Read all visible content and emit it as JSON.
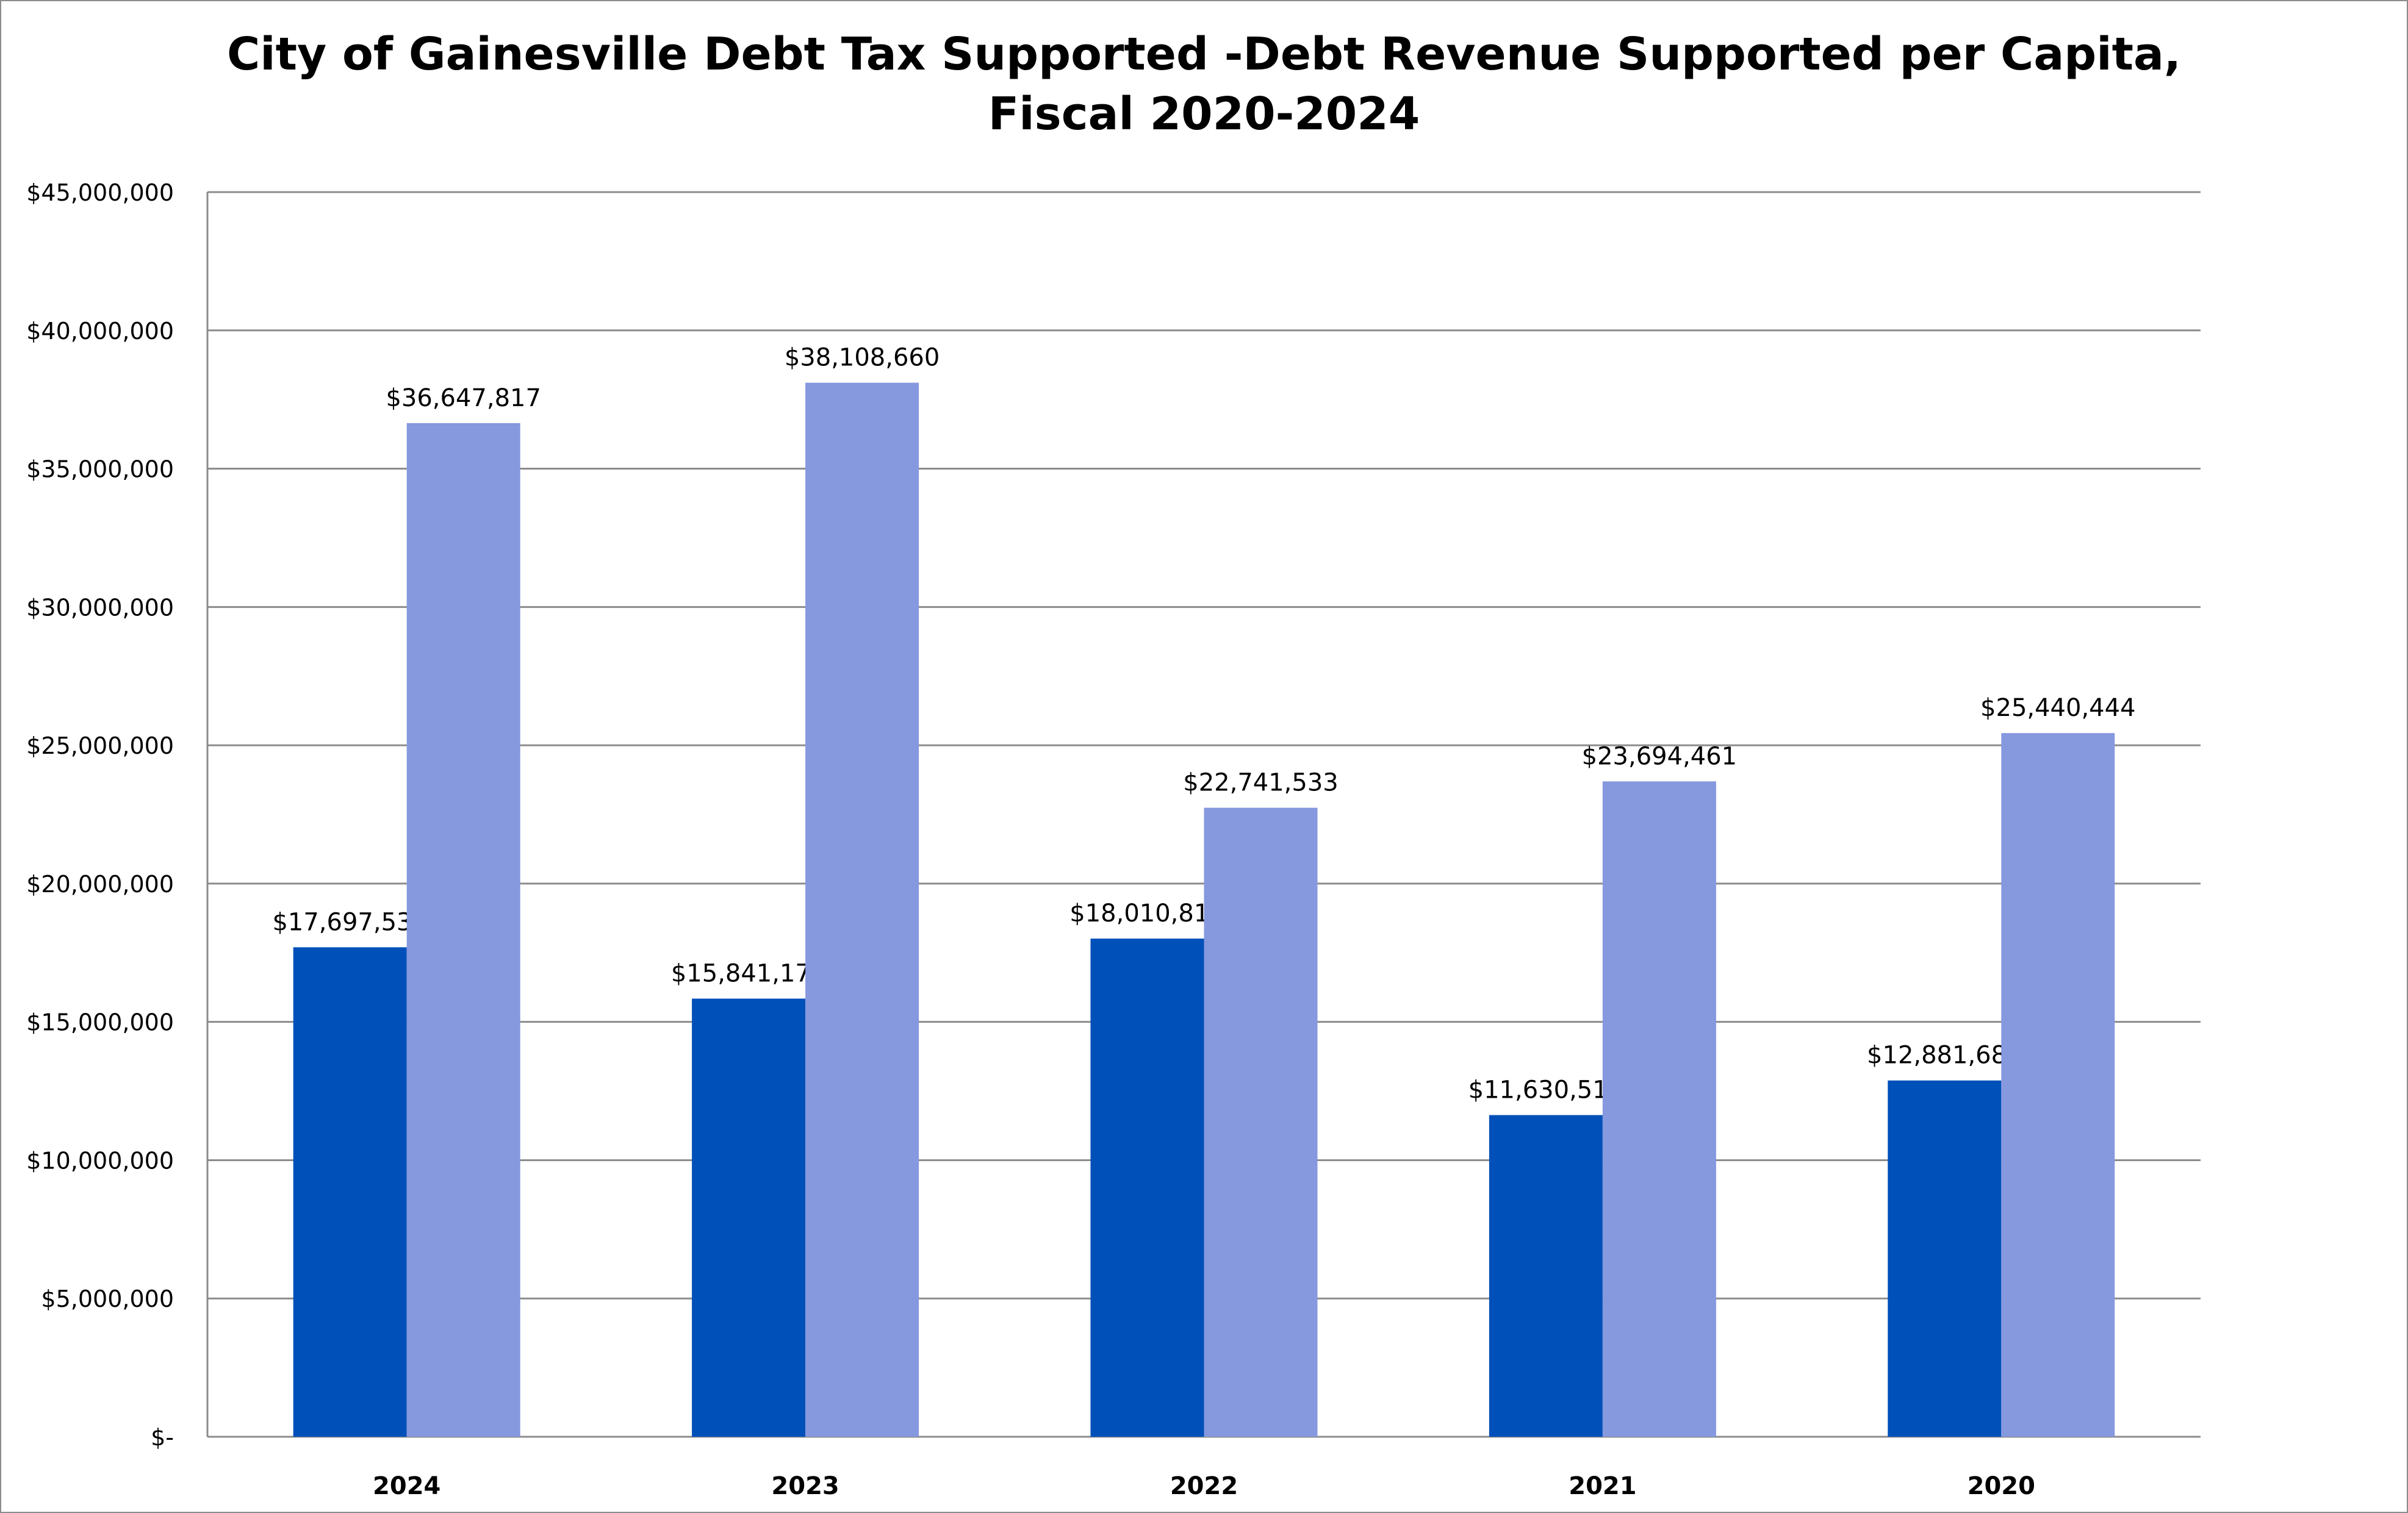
{
  "chart_data": {
    "type": "bar",
    "title_lines": [
      "City of Gainesville Debt Tax Supported -Debt Revenue Supported per Capita,",
      "Fiscal 2020-2024"
    ],
    "categories": [
      "2024",
      "2023",
      "2022",
      "2021",
      "2020"
    ],
    "series": [
      {
        "values": [
          17697533,
          15841176,
          18010814,
          11630510,
          12881688
        ],
        "labels": [
          "$17,697,533",
          "$15,841,176",
          "$18,010,814",
          "$11,630,510",
          "$12,881,688"
        ],
        "color": "#0050BA"
      },
      {
        "values": [
          36647817,
          38108660,
          22741533,
          23694461,
          25440444
        ],
        "labels": [
          "$36,647,817",
          "$38,108,660",
          "$22,741,533",
          "$23,694,461",
          "$25,440,444"
        ],
        "color": "#8698DE"
      }
    ],
    "yticks": [
      0,
      5000000,
      10000000,
      15000000,
      20000000,
      25000000,
      30000000,
      35000000,
      40000000,
      45000000
    ],
    "ytick_labels": [
      "$-",
      "$5,000,000",
      "$10,000,000",
      "$15,000,000",
      "$20,000,000",
      "$25,000,000",
      "$30,000,000",
      "$35,000,000",
      "$40,000,000",
      "$45,000,000"
    ],
    "ylim": [
      0,
      45000000
    ],
    "grid": true,
    "legend": "none"
  }
}
